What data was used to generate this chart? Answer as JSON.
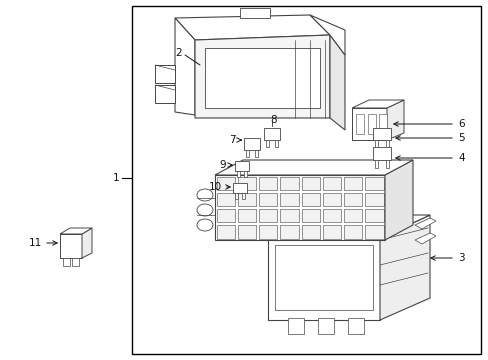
{
  "bg_color": "#ffffff",
  "border_color": "#000000",
  "line_color": "#444444",
  "figsize": [
    4.89,
    3.6
  ],
  "dpi": 100
}
